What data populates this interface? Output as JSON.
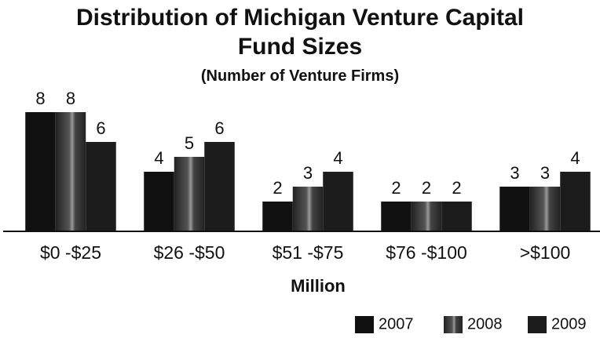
{
  "chart_data": {
    "type": "bar",
    "title": "Distribution of Michigan Venture Capital Fund Sizes",
    "subtitle": "(Number of Venture Firms)",
    "x_label": "Million",
    "categories": [
      "$0 -$25",
      "$26 -$50",
      "$51 -$75",
      "$76 -$100",
      ">$100"
    ],
    "series": [
      {
        "name": "2007",
        "color": "#111111",
        "values": [
          8,
          4,
          2,
          2,
          3
        ]
      },
      {
        "name": "2008",
        "color": "#2b2b2b",
        "values": [
          8,
          5,
          3,
          2,
          3
        ]
      },
      {
        "name": "2009",
        "color": "#1c1c1c",
        "values": [
          6,
          6,
          4,
          2,
          4
        ]
      }
    ],
    "ylim": [
      0,
      8
    ],
    "legend": "bottom-right"
  }
}
